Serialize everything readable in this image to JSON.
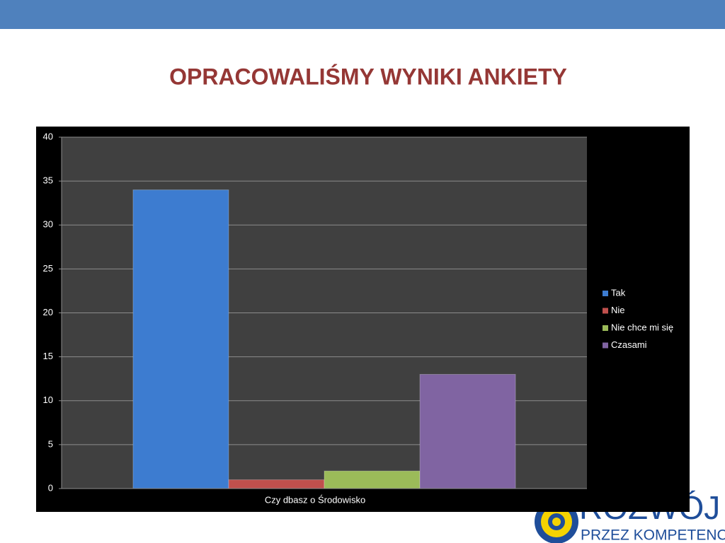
{
  "slide_title": "OPRACOWALIŚMY WYNIKI ANKIETY",
  "chart_data": {
    "type": "bar",
    "categories": [
      "Czy dbasz o Środowisko"
    ],
    "series": [
      {
        "name": "Tak",
        "color": "#3d7cd0",
        "values": [
          34
        ]
      },
      {
        "name": "Nie",
        "color": "#c0504d",
        "values": [
          1
        ]
      },
      {
        "name": "Nie chce mi się",
        "color": "#9bbb59",
        "values": [
          2
        ]
      },
      {
        "name": "Czasami",
        "color": "#8064a2",
        "values": [
          13
        ]
      }
    ],
    "ylim": [
      0,
      40
    ],
    "yticks": [
      0,
      5,
      10,
      15,
      20,
      25,
      30,
      35,
      40
    ],
    "grid": true,
    "legend": "right"
  },
  "logo": {
    "line1": "ROZWÓJ",
    "line2": "PRZEZ KOMPETENCJE"
  }
}
